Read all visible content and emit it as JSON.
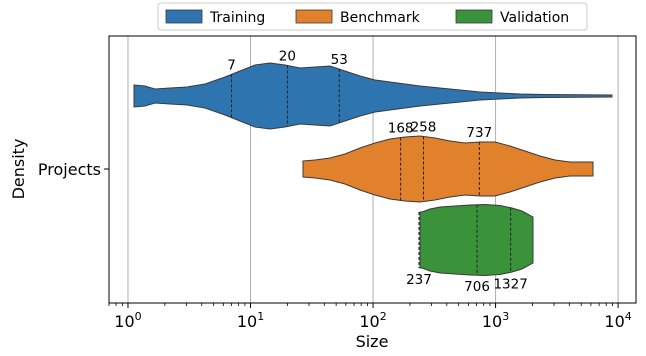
{
  "chart_data": {
    "type": "violin",
    "xlabel": "Size",
    "ylabel": "Density",
    "x_scale": "log",
    "xlim": [
      0.7,
      14000
    ],
    "x_ticks": [
      {
        "value": 1,
        "label": "10^0"
      },
      {
        "value": 10,
        "label": "10^1"
      },
      {
        "value": 100,
        "label": "10^2"
      },
      {
        "value": 1000,
        "label": "10^3"
      },
      {
        "value": 10000,
        "label": "10^4"
      }
    ],
    "grid": "vertical",
    "legend": {
      "placement": "top-center",
      "entries": [
        "Training",
        "Benchmark",
        "Validation"
      ]
    },
    "y_categories": [
      "Projects"
    ],
    "series": [
      {
        "name": "Training",
        "color": "#2e75b0",
        "range": [
          1,
          9000
        ],
        "quartiles": [
          {
            "value": 7,
            "label": "7"
          },
          {
            "value": 20,
            "label": "20"
          },
          {
            "value": 53,
            "label": "53"
          }
        ],
        "quartile_label_position": "above"
      },
      {
        "name": "Benchmark",
        "color": "#e1812c",
        "range": [
          25,
          6200
        ],
        "quartiles": [
          {
            "value": 168,
            "label": "168"
          },
          {
            "value": 258,
            "label": "258"
          },
          {
            "value": 737,
            "label": "737"
          }
        ],
        "quartile_label_position": "above"
      },
      {
        "name": "Validation",
        "color": "#3a923a",
        "range": [
          225,
          2050
        ],
        "quartiles": [
          {
            "value": 237,
            "label": "237"
          },
          {
            "value": 706,
            "label": "706"
          },
          {
            "value": 1327,
            "label": "1327"
          }
        ],
        "quartile_label_position": "below"
      }
    ]
  }
}
